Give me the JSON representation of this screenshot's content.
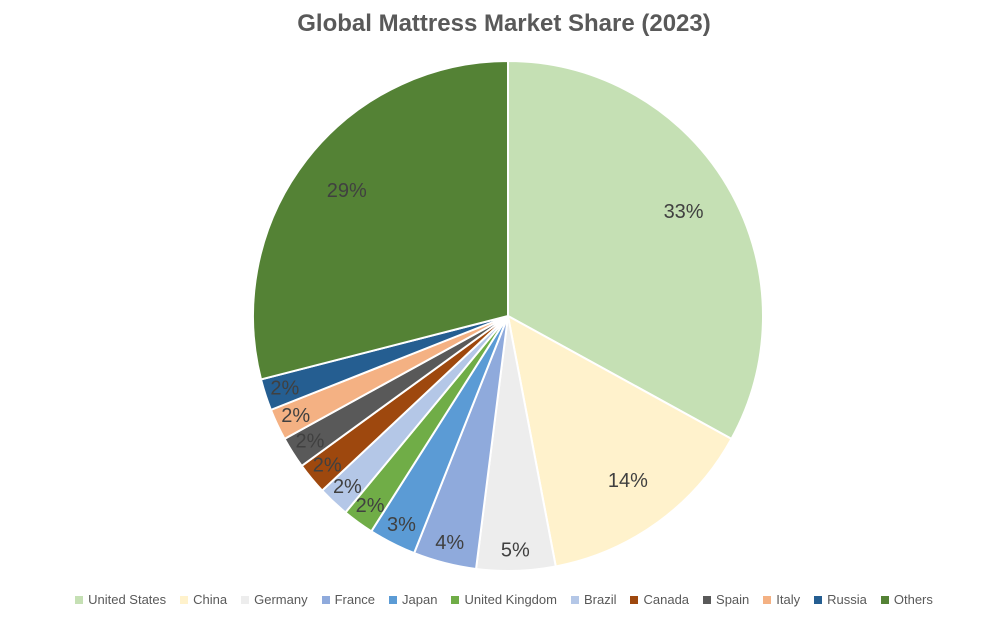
{
  "chart_data": {
    "type": "pie",
    "title": "Global Mattress Market Share (2023)",
    "categories": [
      "United States",
      "China",
      "Germany",
      "France",
      "Japan",
      "United Kingdom",
      "Brazil",
      "Canada",
      "Spain",
      "Italy",
      "Russia",
      "Others"
    ],
    "values": [
      33,
      14,
      5,
      4,
      3,
      2,
      2,
      2,
      2,
      2,
      2,
      29
    ],
    "labels": [
      "33%",
      "14%",
      "5%",
      "4%",
      "3%",
      "2%",
      "2%",
      "2%",
      "2%",
      "2%",
      "2%",
      "29%"
    ],
    "colors": [
      "#c5e0b4",
      "#fff2cc",
      "#ededed",
      "#8faadc",
      "#5b9bd5",
      "#70ad47",
      "#b4c7e7",
      "#9e480e",
      "#595959",
      "#f4b183",
      "#255e91",
      "#548235"
    ],
    "legend_position": "bottom",
    "start_angle": "top, clockwise"
  }
}
